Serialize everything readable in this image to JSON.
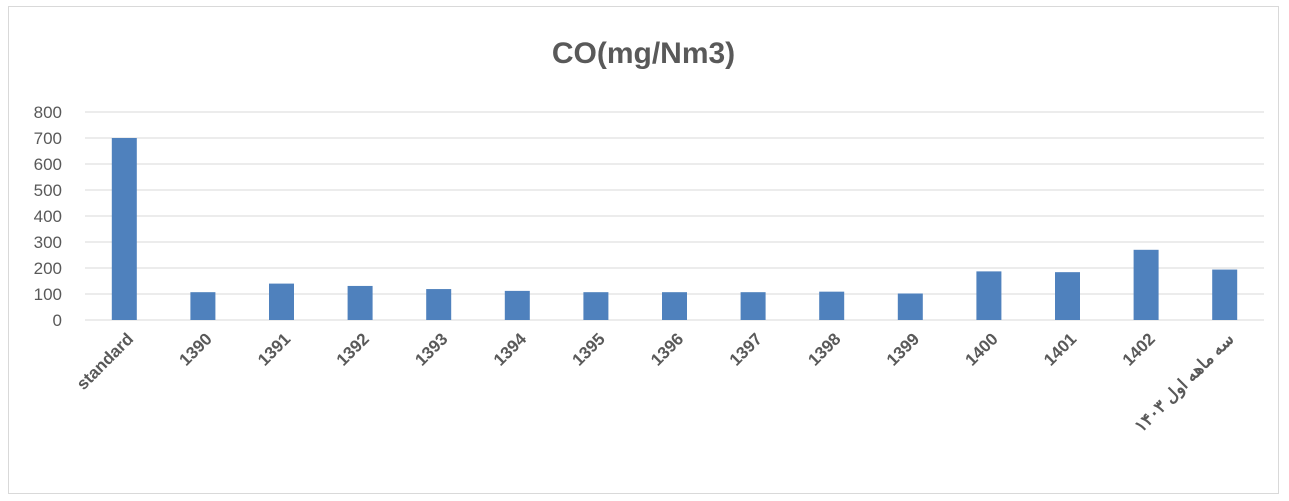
{
  "chart_data": {
    "type": "bar",
    "title": "CO(mg/Nm3)",
    "xlabel": "",
    "ylabel": "",
    "categories": [
      "standard",
      "1390",
      "1391",
      "1392",
      "1393",
      "1394",
      "1395",
      "1396",
      "1397",
      "1398",
      "1399",
      "1400",
      "1401",
      "1402",
      "سه ماهه اول ۱۴۰۳"
    ],
    "values": [
      700,
      107,
      140,
      131,
      119,
      112,
      107,
      107,
      107,
      109,
      102,
      187,
      184,
      270,
      194
    ],
    "ylim": [
      0,
      800
    ],
    "yticks": [
      "0",
      "100",
      "200",
      "300",
      "400",
      "500",
      "600",
      "700",
      "800"
    ],
    "grid": true,
    "legend": "none",
    "bar_color": "#4f81bd",
    "grid_color": "#d9d9d9",
    "text_color": "#595959"
  }
}
